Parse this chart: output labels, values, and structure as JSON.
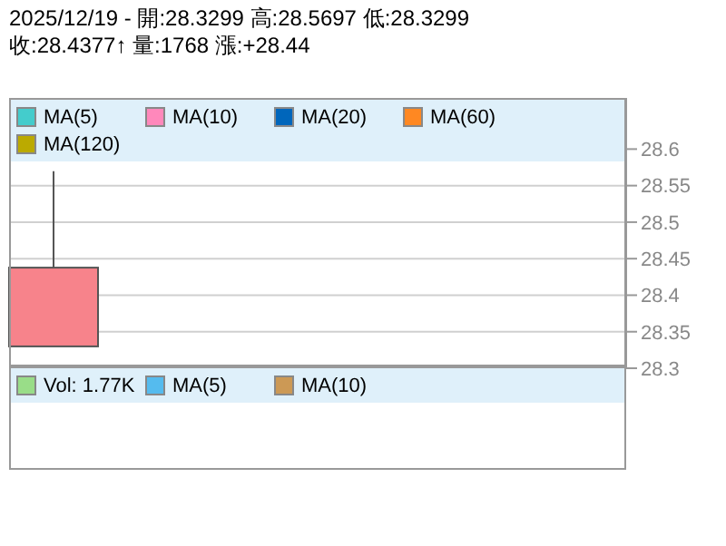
{
  "chart_data": [
    {
      "type": "candlestick",
      "title": "2025/12/19 - 開:28.3299 高:28.5697 低:28.3299",
      "subtitle": "收:28.4377↑ 量:1768 漲:+28.44",
      "categories": [
        null,
        null,
        null,
        null,
        null,
        null,
        null
      ],
      "ohlc": [
        [
          28.3299,
          28.5697,
          28.3299,
          28.4377
        ],
        null,
        null,
        null,
        null,
        null,
        null
      ],
      "series": [
        {
          "name": "MA(5)",
          "type": "line",
          "color": "#44cccc",
          "values": [
            null,
            null,
            null,
            null,
            null,
            null,
            null
          ]
        },
        {
          "name": "MA(10)",
          "type": "line",
          "color": "#ff88bb",
          "values": [
            null,
            null,
            null,
            null,
            null,
            null,
            null
          ]
        },
        {
          "name": "MA(20)",
          "type": "line",
          "color": "#0066bb",
          "values": [
            null,
            null,
            null,
            null,
            null,
            null,
            null
          ]
        },
        {
          "name": "MA(60)",
          "type": "line",
          "color": "#ff8822",
          "values": [
            null,
            null,
            null,
            null,
            null,
            null,
            null
          ]
        },
        {
          "name": "MA(120)",
          "type": "line",
          "color": "#bbaa00",
          "values": [
            null,
            null,
            null,
            null,
            null,
            null,
            null
          ]
        }
      ],
      "ylim": [
        28.3,
        28.67
      ],
      "yticks": [
        28.3,
        28.35,
        28.4,
        28.45,
        28.5,
        28.55,
        28.6
      ],
      "grid": "y",
      "legend": "top left"
    },
    {
      "type": "other",
      "series": [
        {
          "name": "Vol: 1.77K",
          "color": "#99dd88"
        },
        {
          "name": "MA(5)",
          "color": "#55bbee"
        },
        {
          "name": "MA(10)",
          "color": "#cc9955"
        }
      ],
      "legend": "top left"
    }
  ]
}
